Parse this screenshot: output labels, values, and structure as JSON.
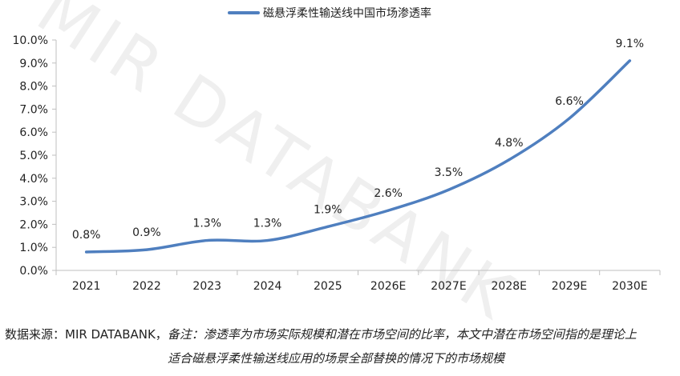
{
  "watermark": "MIR DATABANK",
  "source": {
    "prefix": "数据来源：MIR DATABANK，",
    "note_line1": "备注：渗透率为市场实际规模和潜在市场空间的比率，本文中潜在市场空间指的是理论上",
    "note_line2": "适合磁悬浮柔性输送线应用的场景全部替换的情况下的市场规模"
  },
  "colors": {
    "line": "#4F7FBF",
    "axis": "#BFBFBF",
    "text": "#222222"
  },
  "chart_data": {
    "type": "line",
    "categories": [
      "2021",
      "2022",
      "2023",
      "2024",
      "2025",
      "2026E",
      "2027E",
      "2028E",
      "2029E",
      "2030E"
    ],
    "series": [
      {
        "name": "磁悬浮柔性输送线中国市场渗透率",
        "values": [
          0.8,
          0.9,
          1.3,
          1.3,
          1.9,
          2.6,
          3.5,
          4.8,
          6.6,
          9.1
        ],
        "labels": [
          "0.8%",
          "0.9%",
          "1.3%",
          "1.3%",
          "1.9%",
          "2.6%",
          "3.5%",
          "4.8%",
          "6.6%",
          "9.1%"
        ]
      }
    ],
    "yticks": [
      "0.0%",
      "1.0%",
      "2.0%",
      "3.0%",
      "4.0%",
      "5.0%",
      "6.0%",
      "7.0%",
      "8.0%",
      "9.0%",
      "10.0%"
    ],
    "ylim": [
      0,
      10
    ],
    "grid": false,
    "legend_position": "top"
  }
}
